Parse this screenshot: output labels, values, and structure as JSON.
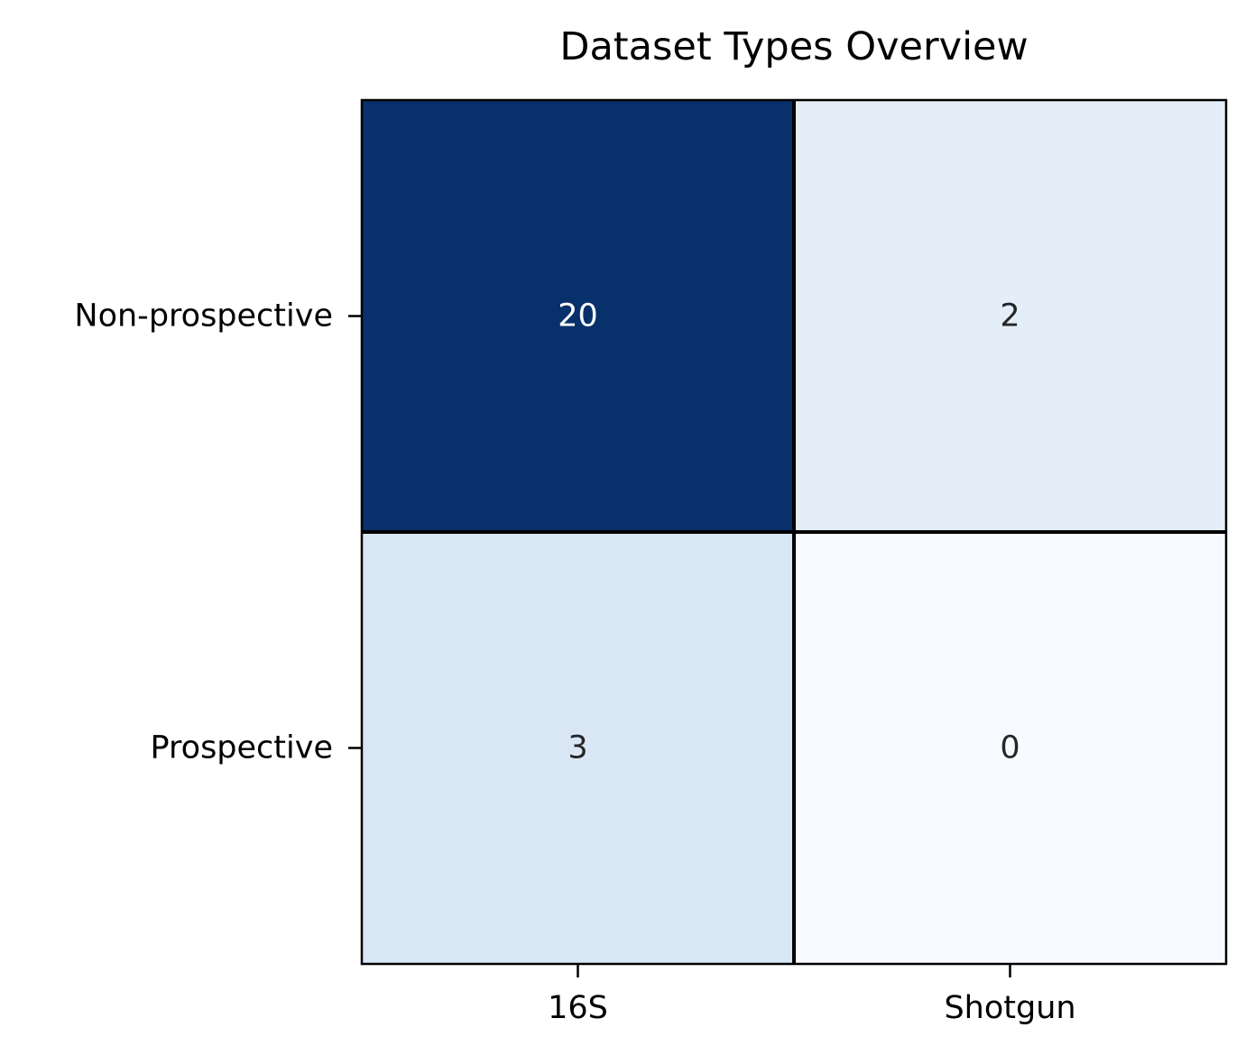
{
  "chart_data": {
    "type": "heatmap",
    "title": "Dataset Types Overview",
    "xlabel": "",
    "ylabel": "",
    "x_categories": [
      "16S",
      "Shotgun"
    ],
    "y_categories": [
      "Non-prospective",
      "Prospective"
    ],
    "values": [
      [
        20,
        2
      ],
      [
        3,
        0
      ]
    ],
    "colormap": "Blues",
    "color_range": [
      0,
      20
    ],
    "cell_colors": [
      [
        "#08306b",
        "#e3eef8"
      ],
      [
        "#d9e7f5",
        "#f7fbff"
      ]
    ],
    "cell_text_colors": [
      [
        "#ffffff",
        "#262626"
      ],
      [
        "#262626",
        "#262626"
      ]
    ],
    "colorbar": false,
    "grid": false
  }
}
